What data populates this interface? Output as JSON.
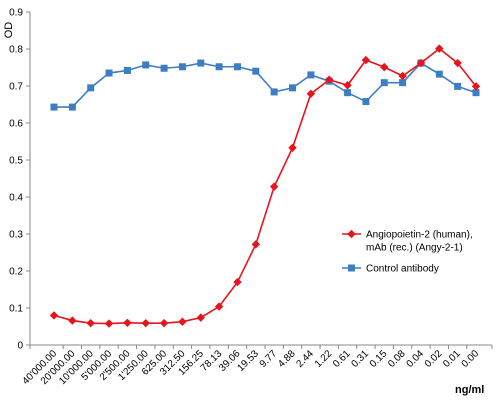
{
  "chart_data": {
    "type": "line",
    "ylabel": "OD",
    "xlabel": "ng/ml",
    "ylim": [
      0,
      0.9
    ],
    "yticks": [
      "0",
      "0.1",
      "0.2",
      "0.3",
      "0.4",
      "0.5",
      "0.6",
      "0.7",
      "0.8",
      "0.9"
    ],
    "categories": [
      "40'000.00",
      "20'000.00",
      "10'000.00",
      "5'000.00",
      "2'500.00",
      "1'250.00",
      "625.00",
      "312.50",
      "156.25",
      "78.13",
      "39.06",
      "19.53",
      "9.77",
      "4.88",
      "2.44",
      "1.22",
      "0.61",
      "0.31",
      "0.15",
      "0.08",
      "0.04",
      "0.02",
      "0.01",
      "0.00"
    ],
    "grid": false,
    "legend_position": "right",
    "series": [
      {
        "name": "Angiopoietin-2 (human), mAb (rec.) (Angy-2-1)",
        "legend_lines": [
          "Angiopoietin-2 (human),",
          "mAb (rec.) (Angy-2-1)"
        ],
        "color": "#e8141b",
        "marker": "diamond",
        "values": [
          0.08,
          0.066,
          0.059,
          0.058,
          0.06,
          0.059,
          0.059,
          0.063,
          0.074,
          0.104,
          0.17,
          0.272,
          0.428,
          0.533,
          0.679,
          0.717,
          0.702,
          0.77,
          0.751,
          0.727,
          0.762,
          0.801,
          0.762,
          0.699
        ]
      },
      {
        "name": "Control antibody",
        "legend_lines": [
          "Control antibody"
        ],
        "color": "#3d7dc4",
        "marker": "square",
        "values": [
          0.643,
          0.643,
          0.695,
          0.735,
          0.742,
          0.757,
          0.748,
          0.752,
          0.762,
          0.752,
          0.752,
          0.74,
          0.684,
          0.695,
          0.73,
          0.713,
          0.682,
          0.658,
          0.709,
          0.709,
          0.762,
          0.732,
          0.699,
          0.682
        ]
      }
    ]
  }
}
